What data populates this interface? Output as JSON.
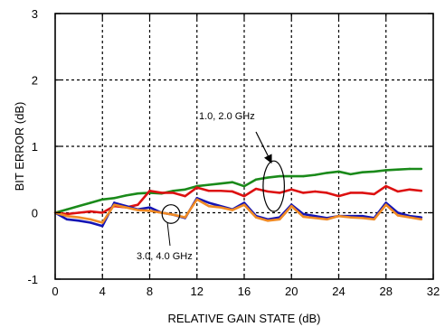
{
  "chart_data": {
    "type": "line",
    "xlabel": "RELATIVE GAIN STATE (dB)",
    "ylabel": "BIT ERROR (dB)",
    "xlim": [
      0,
      32
    ],
    "ylim": [
      -1,
      3
    ],
    "x_ticks": [
      0,
      4,
      8,
      12,
      16,
      20,
      24,
      28,
      32
    ],
    "y_ticks": [
      -1,
      0,
      1,
      2,
      3
    ],
    "x_tick_labels": [
      "0",
      "4",
      "8",
      "12",
      "16",
      "20",
      "24",
      "28",
      "32"
    ],
    "y_tick_labels": [
      "-1",
      "0",
      "1",
      "2",
      "3"
    ],
    "grid": true,
    "grid_style": "dotted",
    "x": [
      0,
      1,
      2,
      3,
      4,
      5,
      6,
      7,
      8,
      9,
      10,
      11,
      12,
      13,
      14,
      15,
      16,
      17,
      18,
      19,
      20,
      21,
      22,
      23,
      24,
      25,
      26,
      27,
      28,
      29,
      30,
      31
    ],
    "series": [
      {
        "color": "#1a8a1a",
        "values": [
          0.0,
          0.05,
          0.1,
          0.15,
          0.2,
          0.22,
          0.26,
          0.29,
          0.3,
          0.29,
          0.33,
          0.35,
          0.4,
          0.42,
          0.44,
          0.46,
          0.4,
          0.5,
          0.53,
          0.55,
          0.55,
          0.55,
          0.57,
          0.6,
          0.62,
          0.58,
          0.61,
          0.62,
          0.64,
          0.65,
          0.66,
          0.66
        ]
      },
      {
        "color": "#dd1111",
        "values": [
          0.0,
          -0.02,
          0.0,
          0.02,
          0.0,
          0.1,
          0.08,
          0.12,
          0.33,
          0.3,
          0.3,
          0.25,
          0.38,
          0.33,
          0.33,
          0.32,
          0.25,
          0.36,
          0.32,
          0.3,
          0.35,
          0.3,
          0.32,
          0.3,
          0.25,
          0.3,
          0.3,
          0.28,
          0.4,
          0.32,
          0.35,
          0.33
        ]
      },
      {
        "color": "#1414b4",
        "values": [
          0.0,
          -0.1,
          -0.12,
          -0.15,
          -0.2,
          0.15,
          0.1,
          0.05,
          0.08,
          0.0,
          -0.03,
          -0.08,
          0.22,
          0.15,
          0.1,
          0.05,
          0.15,
          -0.05,
          -0.1,
          -0.07,
          0.12,
          -0.02,
          -0.05,
          -0.08,
          -0.05,
          -0.05,
          -0.05,
          -0.08,
          0.15,
          0.0,
          -0.05,
          -0.07
        ]
      },
      {
        "color": "#f08a24",
        "values": [
          0.0,
          -0.05,
          -0.07,
          -0.1,
          -0.15,
          0.12,
          0.08,
          0.04,
          0.03,
          0.0,
          -0.03,
          -0.07,
          0.2,
          0.1,
          0.08,
          0.04,
          0.12,
          -0.07,
          -0.12,
          -0.1,
          0.1,
          -0.06,
          -0.08,
          -0.1,
          -0.05,
          -0.07,
          -0.08,
          -0.1,
          0.12,
          -0.04,
          -0.07,
          -0.1
        ]
      }
    ],
    "annotations": [
      {
        "text": "1.0, 2.0 GHz",
        "ellipse_center": [
          18.5,
          0.4
        ],
        "ellipse_radii": [
          0.9,
          0.38
        ],
        "arrow": true
      },
      {
        "text": "3.0, 4.0 GHz",
        "ellipse_center": [
          9.8,
          -0.02
        ],
        "ellipse_radii": [
          0.75,
          0.14
        ],
        "arrow": false
      }
    ]
  }
}
